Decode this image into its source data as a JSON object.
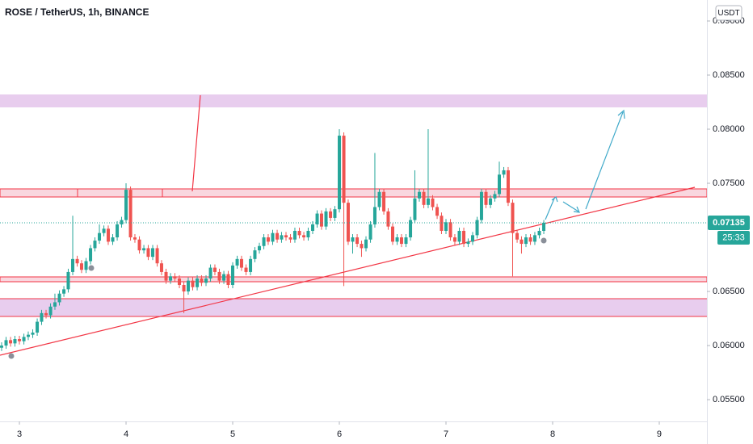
{
  "chart_data": {
    "type": "candlestick",
    "title": "ROSE / TetherUS, 1h, BINANCE",
    "currency_button": "USDT",
    "countdown": "25:33",
    "up_color": "#26a69a",
    "down_color": "#ef5350",
    "xlim": [
      2.818,
      9.447
    ],
    "xticks": [
      3,
      4,
      5,
      6,
      7,
      8,
      9
    ],
    "ylim": [
      0.05299,
      0.09194
    ],
    "yticks": [
      {
        "value": 0.055,
        "label": "0.05500"
      },
      {
        "value": 0.06,
        "label": "0.06000"
      },
      {
        "value": 0.065,
        "label": "0.06500"
      },
      {
        "value": 0.075,
        "label": "0.07500"
      },
      {
        "value": 0.08,
        "label": "0.08000"
      },
      {
        "value": 0.085,
        "label": "0.08500"
      },
      {
        "value": 0.09,
        "label": "0.09000"
      }
    ],
    "x": [
      2.833,
      2.875,
      2.917,
      2.958,
      3.0,
      3.042,
      3.083,
      3.125,
      3.167,
      3.208,
      3.25,
      3.292,
      3.333,
      3.375,
      3.417,
      3.458,
      3.5,
      3.542,
      3.583,
      3.625,
      3.667,
      3.708,
      3.75,
      3.792,
      3.833,
      3.875,
      3.917,
      3.958,
      4.0,
      4.042,
      4.083,
      4.125,
      4.167,
      4.208,
      4.25,
      4.292,
      4.333,
      4.375,
      4.417,
      4.458,
      4.5,
      4.542,
      4.583,
      4.625,
      4.667,
      4.708,
      4.75,
      4.792,
      4.833,
      4.875,
      4.917,
      4.958,
      5.0,
      5.042,
      5.083,
      5.125,
      5.167,
      5.208,
      5.25,
      5.292,
      5.333,
      5.375,
      5.417,
      5.458,
      5.5,
      5.542,
      5.583,
      5.625,
      5.667,
      5.708,
      5.75,
      5.792,
      5.833,
      5.875,
      5.917,
      5.958,
      6.0,
      6.042,
      6.083,
      6.125,
      6.167,
      6.208,
      6.25,
      6.292,
      6.333,
      6.375,
      6.417,
      6.458,
      6.5,
      6.542,
      6.583,
      6.625,
      6.667,
      6.708,
      6.75,
      6.792,
      6.833,
      6.875,
      6.917,
      6.958,
      7.0,
      7.042,
      7.083,
      7.125,
      7.167,
      7.208,
      7.25,
      7.292,
      7.333,
      7.375,
      7.417,
      7.458,
      7.5,
      7.542,
      7.583,
      7.625,
      7.667,
      7.708,
      7.75,
      7.792,
      7.833,
      7.875,
      7.917
    ],
    "open": [
      0.0598,
      0.06,
      0.0605,
      0.0602,
      0.0606,
      0.0604,
      0.0608,
      0.061,
      0.0612,
      0.0622,
      0.063,
      0.0628,
      0.0636,
      0.064,
      0.0648,
      0.0652,
      0.0668,
      0.068,
      0.0676,
      0.067,
      0.0678,
      0.069,
      0.0697,
      0.0704,
      0.0708,
      0.0696,
      0.07,
      0.0712,
      0.0716,
      0.0744,
      0.07,
      0.0698,
      0.0688,
      0.069,
      0.0682,
      0.069,
      0.0676,
      0.0668,
      0.066,
      0.0664,
      0.0662,
      0.0656,
      0.065,
      0.066,
      0.0654,
      0.0662,
      0.0658,
      0.0662,
      0.0672,
      0.0668,
      0.066,
      0.0666,
      0.0656,
      0.0674,
      0.068,
      0.0672,
      0.0668,
      0.068,
      0.0688,
      0.0692,
      0.07,
      0.0696,
      0.0704,
      0.0698,
      0.0702,
      0.07,
      0.0698,
      0.0706,
      0.0702,
      0.07,
      0.0706,
      0.0712,
      0.0722,
      0.071,
      0.0724,
      0.0718,
      0.0726,
      0.0794,
      0.0732,
      0.0696,
      0.07,
      0.0694,
      0.069,
      0.0698,
      0.0712,
      0.0728,
      0.0742,
      0.0724,
      0.071,
      0.0696,
      0.07,
      0.0694,
      0.07,
      0.0716,
      0.0736,
      0.0742,
      0.073,
      0.0736,
      0.0728,
      0.072,
      0.0706,
      0.0714,
      0.07,
      0.0696,
      0.0706,
      0.0694,
      0.0696,
      0.0702,
      0.0716,
      0.0742,
      0.073,
      0.0736,
      0.074,
      0.0758,
      0.0762,
      0.0732,
      0.0704,
      0.0698,
      0.0694,
      0.07,
      0.0696,
      0.0702,
      0.0706
    ],
    "high": [
      0.0603,
      0.0608,
      0.0608,
      0.0609,
      0.0609,
      0.0611,
      0.0613,
      0.0615,
      0.0625,
      0.0633,
      0.0633,
      0.0639,
      0.0648,
      0.0651,
      0.0655,
      0.0671,
      0.072,
      0.0683,
      0.0679,
      0.0681,
      0.0693,
      0.07,
      0.0712,
      0.0711,
      0.0711,
      0.0703,
      0.0715,
      0.0719,
      0.075,
      0.0747,
      0.0703,
      0.0701,
      0.0693,
      0.0693,
      0.0693,
      0.0693,
      0.0679,
      0.0671,
      0.0667,
      0.0667,
      0.0665,
      0.0659,
      0.0663,
      0.0663,
      0.0665,
      0.0665,
      0.0665,
      0.0675,
      0.0675,
      0.0671,
      0.0669,
      0.0669,
      0.0677,
      0.0683,
      0.0683,
      0.0675,
      0.0683,
      0.0691,
      0.0695,
      0.0703,
      0.0703,
      0.0707,
      0.0707,
      0.0705,
      0.0705,
      0.0703,
      0.0709,
      0.0709,
      0.0705,
      0.0709,
      0.0715,
      0.0725,
      0.0725,
      0.0727,
      0.0727,
      0.0729,
      0.08,
      0.0797,
      0.0735,
      0.0703,
      0.0703,
      0.0697,
      0.0701,
      0.0715,
      0.0778,
      0.0745,
      0.0745,
      0.0727,
      0.0713,
      0.0703,
      0.0703,
      0.0703,
      0.0719,
      0.0762,
      0.0745,
      0.0745,
      0.08,
      0.0739,
      0.0731,
      0.0723,
      0.0717,
      0.0717,
      0.0703,
      0.0709,
      0.0709,
      0.0699,
      0.0705,
      0.0719,
      0.0745,
      0.0745,
      0.0739,
      0.0743,
      0.077,
      0.0765,
      0.0765,
      0.0735,
      0.0707,
      0.0701,
      0.0703,
      0.0703,
      0.0705,
      0.0709,
      0.0716
    ],
    "low": [
      0.0595,
      0.0597,
      0.0599,
      0.0599,
      0.0601,
      0.0601,
      0.0605,
      0.0607,
      0.0609,
      0.0619,
      0.0625,
      0.0625,
      0.0633,
      0.0637,
      0.0645,
      0.0649,
      0.0665,
      0.0673,
      0.0667,
      0.0667,
      0.0675,
      0.0687,
      0.0694,
      0.0701,
      0.0693,
      0.0693,
      0.0697,
      0.0709,
      0.0713,
      0.0697,
      0.0695,
      0.0685,
      0.0685,
      0.0679,
      0.0679,
      0.0673,
      0.0665,
      0.0657,
      0.0657,
      0.0659,
      0.0653,
      0.063,
      0.0647,
      0.0651,
      0.0651,
      0.0655,
      0.0655,
      0.0659,
      0.0665,
      0.0657,
      0.0657,
      0.0653,
      0.0653,
      0.0671,
      0.0669,
      0.0665,
      0.0665,
      0.0677,
      0.0685,
      0.0689,
      0.0693,
      0.0693,
      0.0695,
      0.0695,
      0.0697,
      0.0695,
      0.0695,
      0.0699,
      0.0697,
      0.0697,
      0.0703,
      0.0709,
      0.0707,
      0.0707,
      0.0715,
      0.0715,
      0.0723,
      0.0655,
      0.0693,
      0.0685,
      0.0691,
      0.0682,
      0.0687,
      0.0695,
      0.0709,
      0.0725,
      0.0721,
      0.0707,
      0.0693,
      0.0693,
      0.0691,
      0.0691,
      0.0697,
      0.0713,
      0.0733,
      0.0727,
      0.0727,
      0.0725,
      0.0717,
      0.0703,
      0.0703,
      0.0697,
      0.0693,
      0.0693,
      0.0691,
      0.0691,
      0.0693,
      0.0699,
      0.0713,
      0.0727,
      0.0727,
      0.0733,
      0.0737,
      0.0755,
      0.0729,
      0.0664,
      0.0695,
      0.0685,
      0.0691,
      0.0693,
      0.0693,
      0.0699,
      0.0703
    ],
    "close": [
      0.06,
      0.0605,
      0.0602,
      0.0606,
      0.0604,
      0.0608,
      0.061,
      0.0612,
      0.0622,
      0.063,
      0.0628,
      0.0636,
      0.064,
      0.0648,
      0.0652,
      0.0668,
      0.068,
      0.0676,
      0.067,
      0.0678,
      0.069,
      0.0697,
      0.0704,
      0.0708,
      0.0696,
      0.07,
      0.0712,
      0.0716,
      0.0744,
      0.07,
      0.0698,
      0.0688,
      0.069,
      0.0682,
      0.069,
      0.0676,
      0.0668,
      0.066,
      0.0664,
      0.0662,
      0.0656,
      0.065,
      0.066,
      0.0654,
      0.0662,
      0.0658,
      0.0662,
      0.0672,
      0.0668,
      0.066,
      0.0666,
      0.0656,
      0.0674,
      0.068,
      0.0672,
      0.0668,
      0.068,
      0.0688,
      0.0692,
      0.07,
      0.0696,
      0.0704,
      0.0698,
      0.0702,
      0.07,
      0.0698,
      0.0706,
      0.0702,
      0.07,
      0.0706,
      0.0712,
      0.0722,
      0.071,
      0.0724,
      0.0718,
      0.0726,
      0.0794,
      0.0732,
      0.0696,
      0.07,
      0.0694,
      0.069,
      0.0698,
      0.0712,
      0.0728,
      0.0742,
      0.0724,
      0.071,
      0.0696,
      0.07,
      0.0694,
      0.07,
      0.0716,
      0.0736,
      0.0742,
      0.073,
      0.0736,
      0.0728,
      0.072,
      0.0706,
      0.0714,
      0.07,
      0.0696,
      0.0706,
      0.0694,
      0.0696,
      0.0702,
      0.0716,
      0.0742,
      0.073,
      0.0736,
      0.074,
      0.0758,
      0.0762,
      0.0732,
      0.0704,
      0.0698,
      0.0694,
      0.07,
      0.0696,
      0.0702,
      0.0706,
      0.07135
    ]
  }
}
